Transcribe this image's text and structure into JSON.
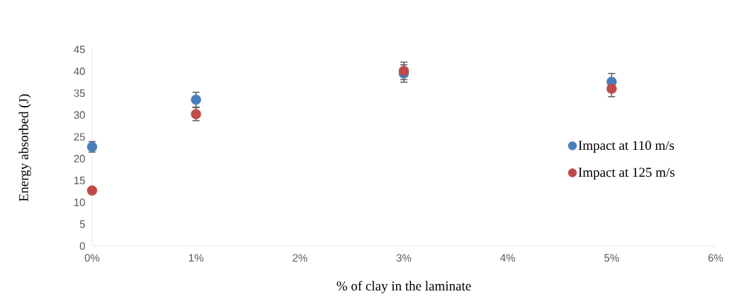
{
  "chart_data": {
    "type": "scatter",
    "xlabel": "% of clay in the laminate",
    "ylabel": "Energy absorbed (J)",
    "x": [
      0,
      1,
      3,
      5
    ],
    "series": [
      {
        "name": "Impact at 110 m/s",
        "color": "#4a7ebb",
        "values": [
          22.7,
          33.5,
          39.5,
          37.6
        ],
        "errors": [
          1.2,
          1.7,
          2,
          1.9
        ]
      },
      {
        "name": "Impact at 125 m/s",
        "color": "#be4b48",
        "values": [
          12.7,
          30.2,
          40.1,
          36.0
        ],
        "errors": [
          null,
          1.5,
          2,
          1.8
        ]
      }
    ],
    "xlim": [
      0,
      6
    ],
    "xticks": [
      {
        "value": 0,
        "label": "0%"
      },
      {
        "value": 1,
        "label": "1%"
      },
      {
        "value": 2,
        "label": "2%"
      },
      {
        "value": 3,
        "label": "3%"
      },
      {
        "value": 4,
        "label": "4%"
      },
      {
        "value": 5,
        "label": "5%"
      },
      {
        "value": 6,
        "label": "6%"
      }
    ],
    "ylim": [
      0,
      45
    ],
    "yticks": [
      0,
      5,
      10,
      15,
      20,
      25,
      30,
      35,
      40,
      45
    ],
    "grid": false,
    "legend": "right",
    "marker": "circle"
  }
}
